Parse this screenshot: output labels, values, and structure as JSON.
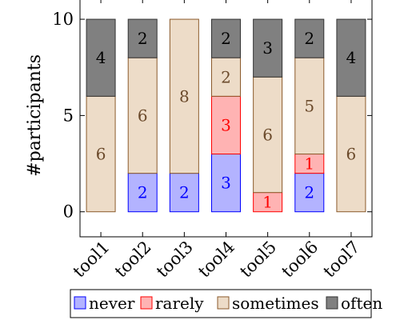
{
  "chart_data": {
    "type": "bar",
    "stacked": true,
    "categories": [
      "tool1",
      "tool2",
      "tool3",
      "tool4",
      "tool5",
      "tool6",
      "tool7"
    ],
    "ylabel": "#participants",
    "xlabel": "",
    "ylim": [
      -1.3,
      11
    ],
    "yticks": [
      0,
      5,
      10
    ],
    "grid": false,
    "legend_position": "bottom",
    "series": [
      {
        "name": "never",
        "values": [
          0,
          2,
          2,
          3,
          0,
          2,
          0
        ],
        "fill": "#b3b3ff",
        "stroke": "#0000ff",
        "text": "#0000ff"
      },
      {
        "name": "rarely",
        "values": [
          0,
          0,
          0,
          3,
          1,
          1,
          0
        ],
        "fill": "#ffb3b3",
        "stroke": "#ff0000",
        "text": "#ff0000"
      },
      {
        "name": "sometimes",
        "values": [
          6,
          6,
          8,
          2,
          6,
          5,
          6
        ],
        "fill": "#eddcc8",
        "stroke": "#8b5a2b",
        "text": "#6b4a2b"
      },
      {
        "name": "often",
        "values": [
          4,
          2,
          0,
          2,
          3,
          2,
          4
        ],
        "fill": "#808080",
        "stroke": "#333333",
        "text": "#000000"
      }
    ]
  }
}
